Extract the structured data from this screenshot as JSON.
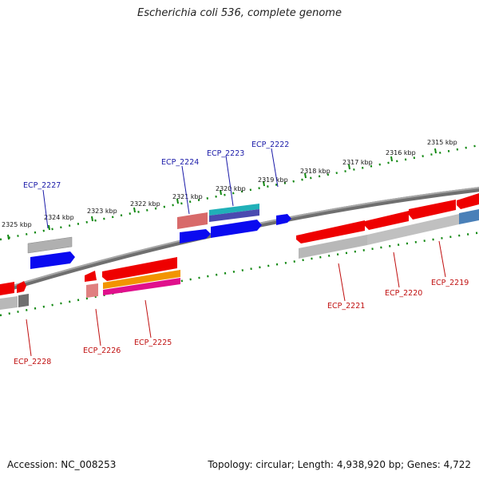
{
  "title": "Escherichia coli 536, complete genome",
  "accession": "Accession: NC_008253",
  "summary": "Topology: circular; Length: 4,938,920 bp; Genes: 4,722",
  "ticks": [
    "2325 kbp",
    "2324 kbp",
    "2323 kbp",
    "2322 kbp",
    "2321 kbp",
    "2320 kbp",
    "2319 kbp",
    "2318 kbp",
    "2317 kbp",
    "2316 kbp",
    "2315 kbp"
  ],
  "genes_top": [
    "ECP_2227",
    "ECP_2224",
    "ECP_2223",
    "ECP_2222"
  ],
  "genes_bottom": [
    "ECP_2228",
    "ECP_2226",
    "ECP_2225",
    "ECP_2221",
    "ECP_2220",
    "ECP_2219"
  ],
  "colors": {
    "backbone": "#7a7a7a",
    "gene_red": "#ee0000",
    "gene_blue": "#0a0af0",
    "gene_gray": "#b8b8b8",
    "gene_pink": "#e08080",
    "gene_orange": "#f29400",
    "gene_magenta": "#e0108c",
    "gene_teal": "#20b0b8",
    "gene_steel": "#4a80b8",
    "tick": "#118811",
    "label_top": "#1a1aa8",
    "label_bottom": "#c01010"
  }
}
